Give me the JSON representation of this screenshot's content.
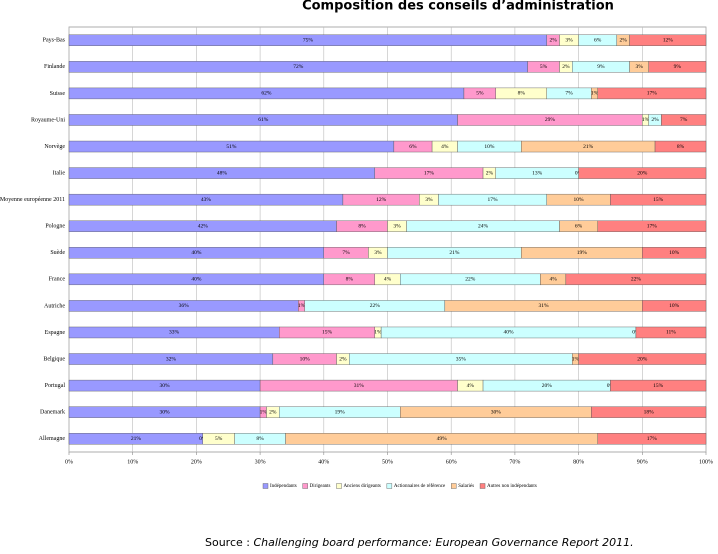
{
  "chart_data": {
    "type": "stacked_barh",
    "title": "Composition des conseils d’administration",
    "source_prefix": "Source : ",
    "source_title": "Challenging board performance: European Governance Report 2011.",
    "categories": [
      "Pays-Bas",
      "Finlande",
      "Suisse",
      "Royaume-Uni",
      "Norvège",
      "Italie",
      "Moyenne européenne 2011",
      "Pologne",
      "Suède",
      "France",
      "Autriche",
      "Espagne",
      "Belgique",
      "Portugal",
      "Danemark",
      "Allemagne"
    ],
    "series": [
      {
        "name": "Indépendants",
        "color": "#9999ff",
        "values": [
          75,
          72,
          62,
          61,
          51,
          48,
          43,
          42,
          40,
          40,
          36,
          33,
          32,
          30,
          30,
          21
        ],
        "value_labels": [
          "75%",
          "72%",
          "62%",
          "61%",
          "51%",
          "48%",
          "43%",
          "42%",
          "40%",
          "40%",
          "36%",
          "33%",
          "32%",
          "30%",
          "30%",
          "21%"
        ]
      },
      {
        "name": "Dirigeants",
        "color": "#ff99cc",
        "values": [
          2,
          5,
          5,
          29,
          6,
          17,
          12,
          8,
          7,
          8,
          1,
          15,
          10,
          31,
          1,
          0
        ],
        "value_labels": [
          "2%",
          "5%",
          "5%",
          "29%",
          "6%",
          "17%",
          "12%",
          "8%",
          "7%",
          "8%",
          "1%",
          "15%",
          "10%",
          "31%",
          "1%",
          "0%"
        ]
      },
      {
        "name": "Anciens dirigeants",
        "color": "#ffffcc",
        "values": [
          3,
          2,
          8,
          1,
          4,
          2,
          3,
          3,
          3,
          4,
          0,
          1,
          2,
          4,
          2,
          5
        ],
        "value_labels": [
          "3%",
          "2%",
          "8%",
          "1%",
          "4%",
          "2%",
          "3%",
          "3%",
          "3%",
          "4%",
          null,
          "1%",
          "2%",
          "4%",
          "2%",
          "5%"
        ]
      },
      {
        "name": "Actionnaires de référence",
        "color": "#ccffff",
        "values": [
          6,
          9,
          7,
          2,
          10,
          13,
          17,
          24,
          21,
          22,
          22,
          40,
          35,
          20,
          19,
          8
        ],
        "value_labels": [
          "6%",
          "9%",
          "7%",
          "2%",
          "10%",
          "13%",
          "17%",
          "24%",
          "21%",
          "22%",
          "22%",
          "40%",
          "35%",
          "20%",
          "19%",
          "8%"
        ]
      },
      {
        "name": "Salariés",
        "color": "#ffcc99",
        "values": [
          2,
          3,
          1,
          0,
          21,
          0,
          10,
          6,
          19,
          4,
          31,
          0,
          1,
          0,
          30,
          49
        ],
        "value_labels": [
          "2%",
          "3%",
          "1%",
          null,
          "21%",
          "0%",
          "10%",
          "6%",
          "19%",
          "4%",
          "31%",
          "0%",
          "1%",
          "0%",
          "30%",
          "49%"
        ]
      },
      {
        "name": "Autres non indépendants",
        "color": "#ff8080",
        "values": [
          12,
          9,
          17,
          7,
          8,
          20,
          15,
          17,
          10,
          22,
          10,
          11,
          20,
          15,
          18,
          17
        ],
        "value_labels": [
          "12%",
          "9%",
          "17%",
          "7%",
          "8%",
          "20%",
          "15%",
          "17%",
          "10%",
          "22%",
          "10%",
          "11%",
          "20%",
          "15%",
          "18%",
          "17%"
        ]
      }
    ],
    "xlim": [
      0,
      100
    ],
    "xticks": [
      {
        "value": 0,
        "label": "0%"
      },
      {
        "value": 10,
        "label": "10%"
      },
      {
        "value": 20,
        "label": "20%"
      },
      {
        "value": 30,
        "label": "30%"
      },
      {
        "value": 40,
        "label": "40%"
      },
      {
        "value": 50,
        "label": "50%"
      },
      {
        "value": 60,
        "label": "60%"
      },
      {
        "value": 70,
        "label": "70%"
      },
      {
        "value": 80,
        "label": "80%"
      },
      {
        "value": 90,
        "label": "90%"
      },
      {
        "value": 100,
        "label": "100%"
      }
    ],
    "grid": true,
    "legend": "bottom"
  }
}
